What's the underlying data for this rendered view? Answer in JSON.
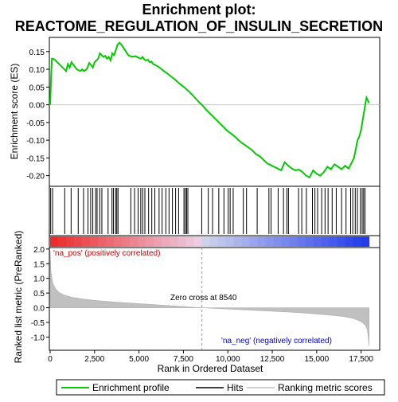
{
  "chart_data": {
    "type": "line",
    "title_line1": "Enrichment plot:",
    "title_line2": "REACTOME_REGULATION_OF_INSULIN_SECRETION",
    "top_panel": {
      "ylabel": "Enrichment score (ES)",
      "ylim": [
        -0.23,
        0.19
      ],
      "yticks": [
        "0.15",
        "0.10",
        "0.05",
        "0.00",
        "-0.05",
        "-0.10",
        "-0.15",
        "-0.20"
      ],
      "ytick_values": [
        0.15,
        0.1,
        0.05,
        0.0,
        -0.05,
        -0.1,
        -0.15,
        -0.2
      ],
      "line_color": "#00cc00",
      "es_curve": {
        "x": [
          0,
          60,
          100,
          180,
          300,
          500,
          700,
          900,
          1000,
          1100,
          1200,
          1350,
          1500,
          1700,
          1800,
          1900,
          2050,
          2100,
          2200,
          2300,
          2400,
          2500,
          2600,
          2700,
          2800,
          2900,
          3000,
          3100,
          3200,
          3300,
          3400,
          3500,
          3600,
          3700,
          3800,
          3900,
          4000,
          4200,
          4400,
          4600,
          4800,
          5000,
          5100,
          5200,
          5300,
          5400,
          5500,
          5600,
          5700,
          5800,
          6000,
          6200,
          6400,
          6600,
          6800,
          7000,
          7200,
          7400,
          7600,
          7800,
          8000,
          8200,
          8400,
          8540,
          8800,
          9000,
          9200,
          9400,
          9600,
          9800,
          10000,
          10200,
          10400,
          10600,
          10800,
          11000,
          11200,
          11400,
          11600,
          11800,
          12000,
          12200,
          12400,
          12600,
          12800,
          13000,
          13200,
          13400,
          13600,
          13800,
          14000,
          14200,
          14400,
          14600,
          14800,
          15000,
          15200,
          15400,
          15600,
          15800,
          16000,
          16200,
          16400,
          16600,
          16800,
          17000,
          17100,
          17200,
          17300,
          17400,
          17500,
          17600,
          17700,
          17800,
          17950
        ],
        "y": [
          0.0,
          0.085,
          0.13,
          0.13,
          0.125,
          0.115,
          0.105,
          0.095,
          0.115,
          0.105,
          0.12,
          0.11,
          0.1,
          0.095,
          0.1,
          0.095,
          0.1,
          0.105,
          0.118,
          0.112,
          0.105,
          0.12,
          0.125,
          0.13,
          0.145,
          0.14,
          0.135,
          0.138,
          0.13,
          0.135,
          0.125,
          0.145,
          0.14,
          0.155,
          0.17,
          0.175,
          0.17,
          0.155,
          0.14,
          0.135,
          0.137,
          0.132,
          0.13,
          0.135,
          0.128,
          0.125,
          0.127,
          0.12,
          0.122,
          0.115,
          0.11,
          0.103,
          0.095,
          0.088,
          0.08,
          0.072,
          0.063,
          0.055,
          0.047,
          0.038,
          0.028,
          0.017,
          0.006,
          0.0,
          -0.015,
          -0.025,
          -0.035,
          -0.045,
          -0.055,
          -0.065,
          -0.075,
          -0.082,
          -0.09,
          -0.1,
          -0.108,
          -0.115,
          -0.122,
          -0.13,
          -0.14,
          -0.145,
          -0.155,
          -0.165,
          -0.17,
          -0.175,
          -0.18,
          -0.185,
          -0.162,
          -0.172,
          -0.18,
          -0.185,
          -0.183,
          -0.19,
          -0.2,
          -0.205,
          -0.185,
          -0.195,
          -0.2,
          -0.19,
          -0.175,
          -0.182,
          -0.168,
          -0.175,
          -0.182,
          -0.172,
          -0.18,
          -0.16,
          -0.15,
          -0.125,
          -0.1,
          -0.09,
          -0.07,
          -0.04,
          -0.01,
          0.02,
          0.005
        ]
      },
      "hits": [
        30,
        140,
        820,
        1180,
        1580,
        1880,
        2130,
        2280,
        2400,
        2560,
        2640,
        2790,
        2910,
        3260,
        3480,
        3560,
        3680,
        3750,
        3820,
        4540,
        4750,
        4950,
        5100,
        5210,
        5330,
        5540,
        5720,
        5890,
        6130,
        6300,
        6510,
        6690,
        6880,
        7060,
        7230,
        7530,
        7610,
        7680,
        7750,
        8530,
        8900,
        9140,
        9490,
        9780,
        10020,
        10130,
        10300,
        10870,
        11050,
        11650,
        12310,
        12430,
        12830,
        13130,
        13320,
        13410,
        13980,
        14160,
        14420,
        14760,
        14900,
        15050,
        15280,
        15470,
        15640,
        15870,
        16100,
        16400,
        16650,
        16910,
        17030,
        17170,
        17290,
        17460,
        17560,
        17640,
        17720
      ]
    },
    "bottom_panel": {
      "ylabel": "Ranked list metric (PreRanked)",
      "xlabel": "Rank in Ordered Dataset",
      "ylim": [
        -1.45,
        2.05
      ],
      "yticks": [
        "2.0",
        "1.5",
        "1.0",
        "0.5",
        "0.0",
        "-0.5",
        "-1.0"
      ],
      "ytick_values": [
        2.0,
        1.5,
        1.0,
        0.5,
        0.0,
        -0.5,
        -1.0
      ],
      "xlim": [
        0,
        18500
      ],
      "xticks": [
        "0",
        "2,500",
        "5,000",
        "7,500",
        "10,000",
        "12,500",
        "15,000",
        "17,500"
      ],
      "xtick_values": [
        0,
        2500,
        5000,
        7500,
        10000,
        12500,
        15000,
        17500
      ],
      "metric_curve": {
        "x": [
          0,
          50,
          150,
          300,
          500,
          800,
          1200,
          1800,
          2500,
          3500,
          4500,
          5500,
          6500,
          7500,
          8540,
          9500,
          10500,
          11500,
          12500,
          13500,
          14500,
          15500,
          16500,
          17000,
          17300,
          17500,
          17650,
          17750,
          17850,
          17900,
          17950
        ],
        "y": [
          1.95,
          1.2,
          0.85,
          0.65,
          0.52,
          0.43,
          0.36,
          0.3,
          0.25,
          0.2,
          0.16,
          0.12,
          0.08,
          0.04,
          0.0,
          -0.03,
          -0.06,
          -0.09,
          -0.12,
          -0.15,
          -0.19,
          -0.24,
          -0.3,
          -0.36,
          -0.42,
          -0.48,
          -0.55,
          -0.62,
          -0.75,
          -1.0,
          -1.3
        ]
      },
      "zero_cross_label": "Zero cross at 8540",
      "zero_cross_value": 8540,
      "pos_label": "'na_pos' (positively correlated)",
      "neg_label": "'na_neg' (negatively correlated)",
      "pos_label_color": "#cc0000",
      "neg_label_color": "#0000cc",
      "fill_color": "#c0c0c0"
    },
    "x_range_max": 17950,
    "legend": {
      "items": [
        {
          "label": "Enrichment profile",
          "color": "#00cc00"
        },
        {
          "label": "Hits",
          "color": "#000000"
        },
        {
          "label": "Ranking metric scores",
          "color": "#c0c0c0"
        }
      ]
    }
  }
}
